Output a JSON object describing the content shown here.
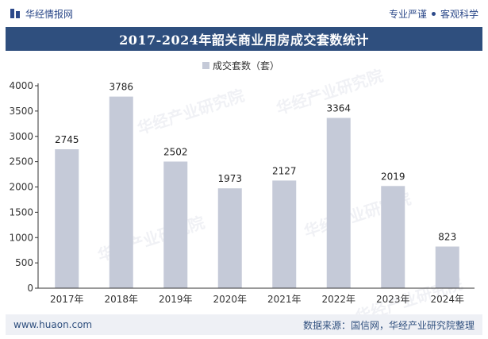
{
  "header": {
    "brand": "华经情报网",
    "slogan_left": "专业严谨",
    "slogan_right": "客观科学"
  },
  "footer": {
    "website": "www.huaon.com",
    "source": "数据来源：国信网，华经产业研究院整理"
  },
  "watermark": "华经产业研究院",
  "colors": {
    "bar": "#c5cad8",
    "title_bg": "#2f4f7e",
    "axis": "#333333"
  },
  "chart_data": {
    "type": "bar",
    "title": "2017-2024年韶关商业用房成交套数统计",
    "legend": "成交套数（套）",
    "categories": [
      "2017年",
      "2018年",
      "2019年",
      "2020年",
      "2021年",
      "2022年",
      "2023年",
      "2024年"
    ],
    "values": [
      2745,
      3786,
      2502,
      1973,
      2127,
      3364,
      2019,
      823
    ],
    "ylim": [
      0,
      4000
    ],
    "yticks": [
      0,
      500,
      1000,
      1500,
      2000,
      2500,
      3000,
      3500,
      4000
    ],
    "xlabel": "",
    "ylabel": ""
  }
}
